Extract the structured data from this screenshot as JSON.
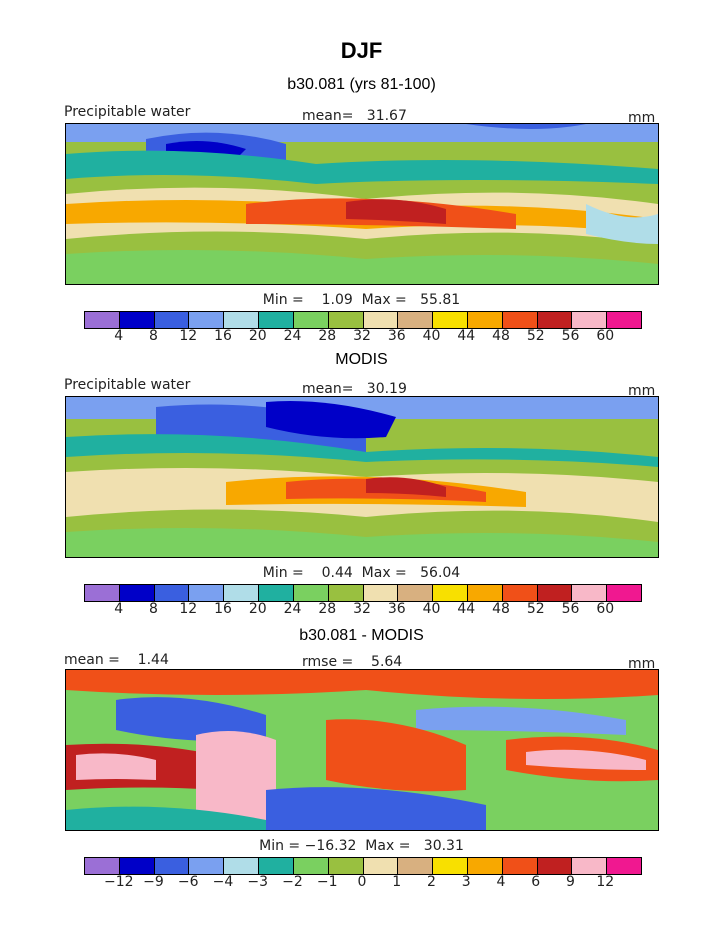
{
  "title": "DJF",
  "panels": [
    {
      "heading": "b30.081 (yrs 81-100)",
      "left_label": "Precipitable water",
      "center_label": "mean=   31.67",
      "units": "mm",
      "stats": "Min =    1.09  Max =   55.81",
      "ticks": [
        "4",
        "8",
        "12",
        "16",
        "20",
        "24",
        "28",
        "32",
        "36",
        "40",
        "44",
        "48",
        "52",
        "56",
        "60"
      ]
    },
    {
      "heading": "MODIS",
      "left_label": "Precipitable water",
      "center_label": "mean=   30.19",
      "units": "mm",
      "stats": "Min =    0.44  Max =   56.04",
      "ticks": [
        "4",
        "8",
        "12",
        "16",
        "20",
        "24",
        "28",
        "32",
        "36",
        "40",
        "44",
        "48",
        "52",
        "56",
        "60"
      ]
    },
    {
      "heading": "b30.081 - MODIS",
      "left_label": "mean =    1.44",
      "center_label": "rmse =    5.64",
      "units": "mm",
      "stats": "Min = −16.32  Max =   30.31",
      "ticks": [
        "−12",
        "−9",
        "−6",
        "−4",
        "−3",
        "−2",
        "−1",
        "0",
        "1",
        "2",
        "3",
        "4",
        "6",
        "9",
        "12"
      ]
    }
  ],
  "colors": [
    "#9b6fd6",
    "#0000c8",
    "#3a5fe0",
    "#7aa0f0",
    "#b0dde8",
    "#20b0a0",
    "#7ad060",
    "#99c040",
    "#f0e0b0",
    "#d8b080",
    "#f8e000",
    "#f8a800",
    "#f05018",
    "#c02020",
    "#f8b8c8",
    "#f01890"
  ]
}
